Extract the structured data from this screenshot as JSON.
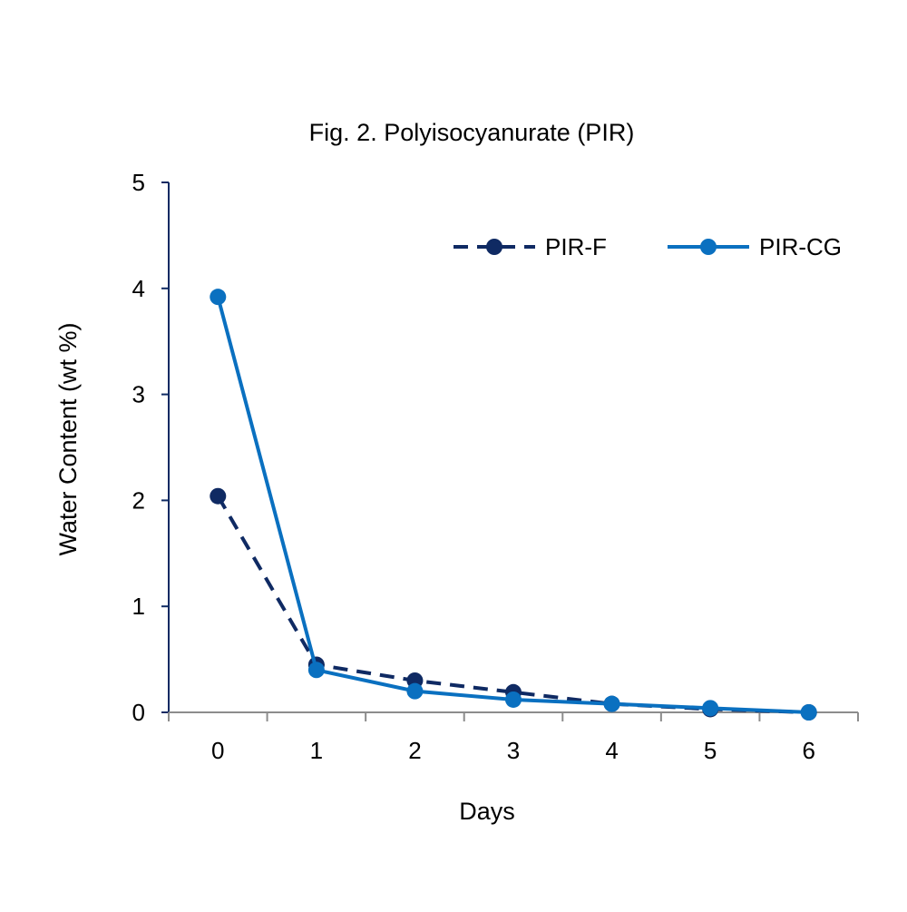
{
  "chart_data": {
    "type": "line",
    "title": "Fig. 2. Polyisocyanurate (PIR)",
    "xlabel": "Days",
    "ylabel": "Water Content (wt %)",
    "x": [
      0,
      1,
      2,
      3,
      4,
      5,
      6
    ],
    "x_tick_labels": [
      "0",
      "1",
      "2",
      "3",
      "4",
      "5",
      "6"
    ],
    "y_tick_labels": [
      "0",
      "1",
      "2",
      "3",
      "4",
      "5"
    ],
    "xlim": [
      -0.5,
      6.5
    ],
    "ylim": [
      0,
      5
    ],
    "grid": false,
    "legend_position": "top-right",
    "series": [
      {
        "name": "PIR-F",
        "values": [
          2.04,
          0.45,
          0.3,
          0.19,
          0.08,
          0.03,
          0.0
        ],
        "color": "#0f2a63",
        "line_style": "dashed"
      },
      {
        "name": "PIR-CG",
        "values": [
          3.92,
          0.4,
          0.2,
          0.12,
          0.08,
          0.04,
          0.0
        ],
        "color": "#0a70c0",
        "line_style": "solid"
      }
    ],
    "axis_colors": {
      "y_axis": "#0f2a63",
      "x_axis": "#8c8c8c"
    }
  }
}
